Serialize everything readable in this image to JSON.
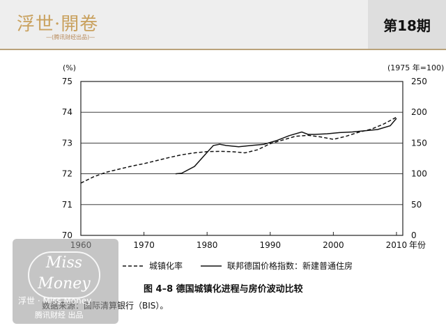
{
  "header": {
    "brand": "浮世·開卷",
    "brand_sub": "—(腾讯财经出品)—",
    "issue": "第18期"
  },
  "figure": {
    "caption": "图 4–8   德国城镇化进程与房价波动比较",
    "source": "数据来源：国际清算银行（BIS）。"
  },
  "watermark": {
    "logo_text": "Miss Money",
    "line1": "浮世 · Miss Money",
    "line2": "腾讯财经 出品"
  },
  "chart_data": {
    "type": "line",
    "left_axis": {
      "unit_label": "(%)",
      "ylim": [
        70,
        75
      ],
      "ticks": [
        70,
        71,
        72,
        73,
        74,
        75
      ]
    },
    "right_axis": {
      "unit_label": "(1975 年=100)",
      "ylim": [
        0,
        250
      ],
      "ticks": [
        0,
        50,
        100,
        150,
        200,
        250
      ]
    },
    "x_axis": {
      "xlim": [
        1960,
        2011
      ],
      "ticks": [
        1960,
        1970,
        1980,
        1990,
        2000,
        2010
      ],
      "unit_suffix": "年份"
    },
    "grid": "horizontal",
    "legend_position": "bottom",
    "series": [
      {
        "name": "城镇化率",
        "axis": "left",
        "style": "dashed",
        "color": "#111111",
        "points": [
          [
            1960,
            71.7
          ],
          [
            1962,
            71.9
          ],
          [
            1964,
            72.05
          ],
          [
            1966,
            72.15
          ],
          [
            1968,
            72.25
          ],
          [
            1970,
            72.33
          ],
          [
            1972,
            72.43
          ],
          [
            1974,
            72.53
          ],
          [
            1976,
            72.62
          ],
          [
            1978,
            72.68
          ],
          [
            1980,
            72.72
          ],
          [
            1982,
            72.73
          ],
          [
            1984,
            72.72
          ],
          [
            1986,
            72.68
          ],
          [
            1988,
            72.78
          ],
          [
            1990,
            72.98
          ],
          [
            1992,
            73.1
          ],
          [
            1994,
            73.22
          ],
          [
            1996,
            73.25
          ],
          [
            1998,
            73.2
          ],
          [
            2000,
            73.12
          ],
          [
            2002,
            73.22
          ],
          [
            2004,
            73.35
          ],
          [
            2006,
            73.45
          ],
          [
            2008,
            73.62
          ],
          [
            2010,
            73.84
          ]
        ]
      },
      {
        "name": "联邦德国价格指数：新建普通住房",
        "axis": "right",
        "style": "solid",
        "color": "#111111",
        "points": [
          [
            1975,
            100
          ],
          [
            1976,
            101
          ],
          [
            1978,
            112
          ],
          [
            1980,
            135
          ],
          [
            1981,
            146
          ],
          [
            1982,
            148
          ],
          [
            1983,
            146
          ],
          [
            1985,
            144
          ],
          [
            1987,
            146
          ],
          [
            1989,
            148
          ],
          [
            1991,
            154
          ],
          [
            1993,
            162
          ],
          [
            1995,
            168
          ],
          [
            1996,
            164
          ],
          [
            1997,
            164
          ],
          [
            1999,
            165
          ],
          [
            2001,
            167
          ],
          [
            2003,
            168
          ],
          [
            2005,
            170
          ],
          [
            2007,
            172
          ],
          [
            2009,
            178
          ],
          [
            2010,
            190
          ]
        ]
      }
    ]
  }
}
